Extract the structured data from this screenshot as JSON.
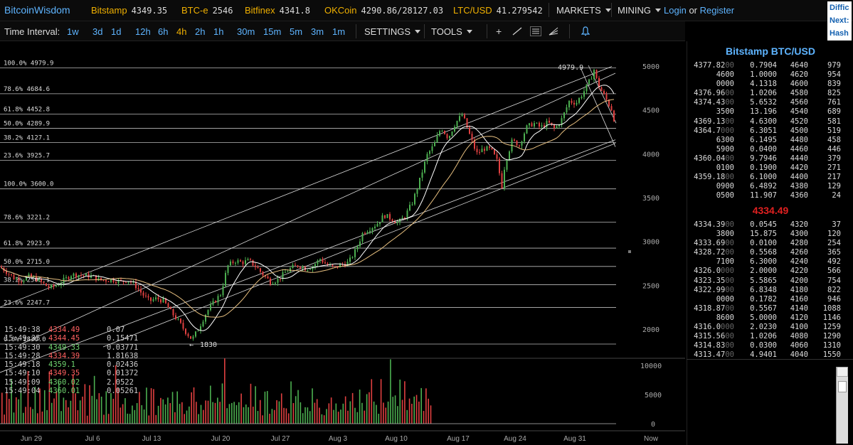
{
  "header": {
    "brand": "BitcoinWisdom",
    "markets": [
      {
        "name": "Bitstamp",
        "price": "4349.35"
      },
      {
        "name": "BTC-e",
        "price": "2546"
      },
      {
        "name": "Bitfinex",
        "price": "4341.8"
      },
      {
        "name": "OKCoin",
        "price": "4290.86/28127.03"
      },
      {
        "name": "LTC/USD",
        "price": "41.279542"
      }
    ],
    "menu_markets": "MARKETS",
    "menu_mining": "MINING",
    "login": "Login",
    "or": "or",
    "register": "Register",
    "difficulty_lines": [
      "Diffic",
      "Next:",
      "Hash"
    ]
  },
  "toolbar": {
    "time_interval_label": "Time Interval:",
    "intervals": [
      "1w",
      "3d",
      "1d",
      "12h",
      "6h",
      "4h",
      "2h",
      "1h",
      "30m",
      "15m",
      "5m",
      "3m",
      "1m"
    ],
    "active_interval": "4h",
    "settings": "SETTINGS",
    "tools": "TOOLS",
    "tool_icons": [
      "crosshair-icon",
      "line-draw-icon",
      "hline-icon",
      "fan-icon",
      "alert-bell-icon"
    ]
  },
  "chart_data": {
    "type": "candlestick",
    "market": "Bitstamp BTC/USD",
    "y_axis_ticks": [
      5000,
      4500,
      4000,
      3500,
      3000,
      2500,
      2000
    ],
    "y_range": [
      1800,
      5060
    ],
    "volume_ticks": [
      10000,
      5000,
      0
    ],
    "x_labels": [
      "Jun 29",
      "Jul 6",
      "Jul 13",
      "Jul 20",
      "Jul 27",
      "Aug 3",
      "Aug 10",
      "Aug 17",
      "Aug 24",
      "Aug 31",
      "Now"
    ],
    "fib_upper": [
      {
        "label": "100.0% 4979.9",
        "value": 4979.9
      },
      {
        "label": "78.6% 4684.6",
        "value": 4684.6
      },
      {
        "label": "61.8% 4452.8",
        "value": 4452.8
      },
      {
        "label": "50.0% 4289.9",
        "value": 4289.9
      },
      {
        "label": "38.2% 4127.1",
        "value": 4127.1
      },
      {
        "label": "23.6% 3925.7",
        "value": 3925.7
      }
    ],
    "fib_lower": [
      {
        "label": "100.0% 3600.0",
        "value": 3600.0
      },
      {
        "label": "78.6% 3221.2",
        "value": 3221.2
      },
      {
        "label": "61.8% 2923.9",
        "value": 2923.9
      },
      {
        "label": "50.0% 2715.0",
        "value": 2715.0
      },
      {
        "label": "38.2% 2506.1",
        "value": 2506.1
      },
      {
        "label": "23.6% 2247.7",
        "value": 2247.7
      },
      {
        "label": "0.0% 1830.0",
        "value": 1830.0
      }
    ],
    "annotation_high": "4979.9",
    "annotation_low": "1830",
    "price_path": [
      [
        0,
        2710
      ],
      [
        10,
        2650
      ],
      [
        20,
        2580
      ],
      [
        30,
        2560
      ],
      [
        40,
        2600
      ],
      [
        50,
        2580
      ],
      [
        60,
        2520
      ],
      [
        70,
        2470
      ],
      [
        80,
        2500
      ],
      [
        90,
        2560
      ],
      [
        100,
        2620
      ],
      [
        110,
        2620
      ],
      [
        120,
        2610
      ],
      [
        130,
        2600
      ],
      [
        140,
        2560
      ],
      [
        150,
        2560
      ],
      [
        160,
        2560
      ],
      [
        170,
        2540
      ],
      [
        180,
        2560
      ],
      [
        190,
        2500
      ],
      [
        200,
        2400
      ],
      [
        210,
        2320
      ],
      [
        220,
        2350
      ],
      [
        230,
        2320
      ],
      [
        240,
        2200
      ],
      [
        250,
        2100
      ],
      [
        260,
        1980
      ],
      [
        270,
        1880
      ],
      [
        280,
        2020
      ],
      [
        290,
        2190
      ],
      [
        300,
        2300
      ],
      [
        310,
        2400
      ],
      [
        320,
        2720
      ],
      [
        330,
        2780
      ],
      [
        340,
        2760
      ],
      [
        350,
        2780
      ],
      [
        360,
        2710
      ],
      [
        370,
        2620
      ],
      [
        380,
        2540
      ],
      [
        390,
        2560
      ],
      [
        400,
        2640
      ],
      [
        410,
        2700
      ],
      [
        420,
        2730
      ],
      [
        430,
        2690
      ],
      [
        440,
        2720
      ],
      [
        450,
        2800
      ],
      [
        460,
        2730
      ],
      [
        470,
        2700
      ],
      [
        480,
        2740
      ],
      [
        490,
        2760
      ],
      [
        500,
        2900
      ],
      [
        510,
        3100
      ],
      [
        520,
        3150
      ],
      [
        530,
        3200
      ],
      [
        540,
        3300
      ],
      [
        550,
        3260
      ],
      [
        560,
        3210
      ],
      [
        570,
        3300
      ],
      [
        580,
        3450
      ],
      [
        590,
        3700
      ],
      [
        600,
        3980
      ],
      [
        610,
        4100
      ],
      [
        620,
        4300
      ],
      [
        630,
        4180
      ],
      [
        640,
        4350
      ],
      [
        650,
        4450
      ],
      [
        660,
        4220
      ],
      [
        670,
        4000
      ],
      [
        680,
        4060
      ],
      [
        690,
        4050
      ],
      [
        700,
        3900
      ],
      [
        705,
        3600
      ],
      [
        710,
        3900
      ],
      [
        720,
        4150
      ],
      [
        730,
        4100
      ],
      [
        740,
        4300
      ],
      [
        750,
        4350
      ],
      [
        760,
        4300
      ],
      [
        770,
        4360
      ],
      [
        780,
        4280
      ],
      [
        790,
        4400
      ],
      [
        800,
        4600
      ],
      [
        810,
        4580
      ],
      [
        820,
        4700
      ],
      [
        830,
        4850
      ],
      [
        835,
        4960
      ],
      [
        840,
        4800
      ],
      [
        850,
        4650
      ],
      [
        860,
        4500
      ],
      [
        865,
        4334
      ]
    ],
    "volumes": [
      4200,
      2800,
      5100,
      3300,
      6000,
      3800,
      4500,
      3500,
      5500,
      2600,
      4800,
      7600,
      4000,
      3600,
      5200,
      4400,
      6800,
      3900,
      5800,
      4100,
      7200,
      3700,
      4600,
      5900,
      11200,
      4300,
      5300,
      3400,
      6100,
      3200,
      7400,
      4700,
      3800,
      5100,
      4900,
      6300,
      3300,
      5600,
      4200,
      6600,
      3500,
      4800,
      5400,
      3700,
      4500,
      3600,
      5700,
      4400,
      7900,
      5000,
      4600,
      3900,
      6200,
      4100,
      3800,
      5300,
      3200,
      2900,
      4700,
      3400,
      3100,
      6700,
      3300,
      4900,
      5500,
      3600,
      2800,
      4300,
      3500,
      5200
    ]
  },
  "orderbook": {
    "title": "Bitstamp BTC/USD",
    "asks": [
      {
        "price": "4377.82",
        "pdim": "00",
        "amount": "0.7904",
        "level": "4640",
        "sum": "979"
      },
      {
        "price": "4600",
        "pdim": "",
        "amount": "1.0000",
        "level": "4620",
        "sum": "954"
      },
      {
        "price": "0000",
        "pdim": "",
        "amount": "4.1318",
        "level": "4600",
        "sum": "839"
      },
      {
        "price": "4376.96",
        "pdim": "00",
        "amount": "1.0206",
        "level": "4580",
        "sum": "825"
      },
      {
        "price": "4374.43",
        "pdim": "00",
        "amount": "5.6532",
        "level": "4560",
        "sum": "761"
      },
      {
        "price": "3500",
        "pdim": "",
        "amount": "13.196",
        "level": "4540",
        "sum": "689"
      },
      {
        "price": "4369.13",
        "pdim": "00",
        "amount": "4.6300",
        "level": "4520",
        "sum": "581"
      },
      {
        "price": "4364.7",
        "pdim": "000",
        "amount": "6.3051",
        "level": "4500",
        "sum": "519"
      },
      {
        "price": "6300",
        "pdim": "",
        "amount": "6.1495",
        "level": "4480",
        "sum": "458"
      },
      {
        "price": "5900",
        "pdim": "",
        "amount": "0.0400",
        "level": "4460",
        "sum": "446"
      },
      {
        "price": "4360.04",
        "pdim": "00",
        "amount": "9.7946",
        "level": "4440",
        "sum": "379"
      },
      {
        "price": "0100",
        "pdim": "",
        "amount": "0.1900",
        "level": "4420",
        "sum": "271"
      },
      {
        "price": "4359.18",
        "pdim": "00",
        "amount": "6.1000",
        "level": "4400",
        "sum": "217"
      },
      {
        "price": "0900",
        "pdim": "",
        "amount": "6.4892",
        "level": "4380",
        "sum": "129"
      },
      {
        "price": "0500",
        "pdim": "",
        "amount": "11.907",
        "level": "4360",
        "sum": "24"
      }
    ],
    "last_price": "4334.49",
    "bids": [
      {
        "price": "4334.39",
        "pdim": "00",
        "amount": "0.0545",
        "level": "4320",
        "sum": "37"
      },
      {
        "price": "3800",
        "pdim": "",
        "amount": "15.875",
        "level": "4300",
        "sum": "120"
      },
      {
        "price": "4333.69",
        "pdim": "00",
        "amount": "0.0100",
        "level": "4280",
        "sum": "254"
      },
      {
        "price": "4328.72",
        "pdim": "00",
        "amount": "0.5568",
        "level": "4260",
        "sum": "365"
      },
      {
        "price": "7100",
        "pdim": "",
        "amount": "6.3000",
        "level": "4240",
        "sum": "492"
      },
      {
        "price": "4326.0",
        "pdim": "000",
        "amount": "2.0000",
        "level": "4220",
        "sum": "566"
      },
      {
        "price": "4323.35",
        "pdim": "00",
        "amount": "5.5865",
        "level": "4200",
        "sum": "754"
      },
      {
        "price": "4322.99",
        "pdim": "00",
        "amount": "6.8348",
        "level": "4180",
        "sum": "822"
      },
      {
        "price": "0000",
        "pdim": "",
        "amount": "0.1782",
        "level": "4160",
        "sum": "946"
      },
      {
        "price": "4318.87",
        "pdim": "00",
        "amount": "0.5567",
        "level": "4140",
        "sum": "1088"
      },
      {
        "price": "8600",
        "pdim": "",
        "amount": "5.0000",
        "level": "4120",
        "sum": "1146"
      },
      {
        "price": "4316.0",
        "pdim": "000",
        "amount": "2.0230",
        "level": "4100",
        "sum": "1259"
      },
      {
        "price": "4315.56",
        "pdim": "00",
        "amount": "1.0206",
        "level": "4080",
        "sum": "1290"
      },
      {
        "price": "4314.83",
        "pdim": "00",
        "amount": "0.0300",
        "level": "4060",
        "sum": "1310"
      },
      {
        "price": "4313.47",
        "pdim": "00",
        "amount": "4.9401",
        "level": "4040",
        "sum": "1550"
      }
    ]
  },
  "trades": [
    {
      "time": "15:49:38",
      "price": "4334.49",
      "side": "sell",
      "amount": "0.07"
    },
    {
      "time": "15:49:35",
      "price": "4344.45",
      "side": "sell",
      "amount": "0.15471"
    },
    {
      "time": "15:49:30",
      "price": "4349.33",
      "side": "buy",
      "amount": "0.03771"
    },
    {
      "time": "15:49:28",
      "price": "4334.39",
      "side": "sell",
      "amount": "1.81638"
    },
    {
      "time": "15:49:18",
      "price": "4359.1",
      "side": "buy",
      "amount": "0.02436"
    },
    {
      "time": "15:49:10",
      "price": "4349.35",
      "side": "sell",
      "amount": "0.01372"
    },
    {
      "time": "15:49:09",
      "price": "4360.02",
      "side": "buy",
      "amount": "2.0522"
    },
    {
      "time": "15:49:04",
      "price": "4360.01",
      "side": "buy",
      "amount": "0.05261"
    }
  ],
  "colors": {
    "up": "#4caf50",
    "down": "#e04040",
    "buy": "#6fd36f",
    "sell": "#ff6060",
    "accent": "#5eb4ff",
    "market": "#f0b000"
  }
}
